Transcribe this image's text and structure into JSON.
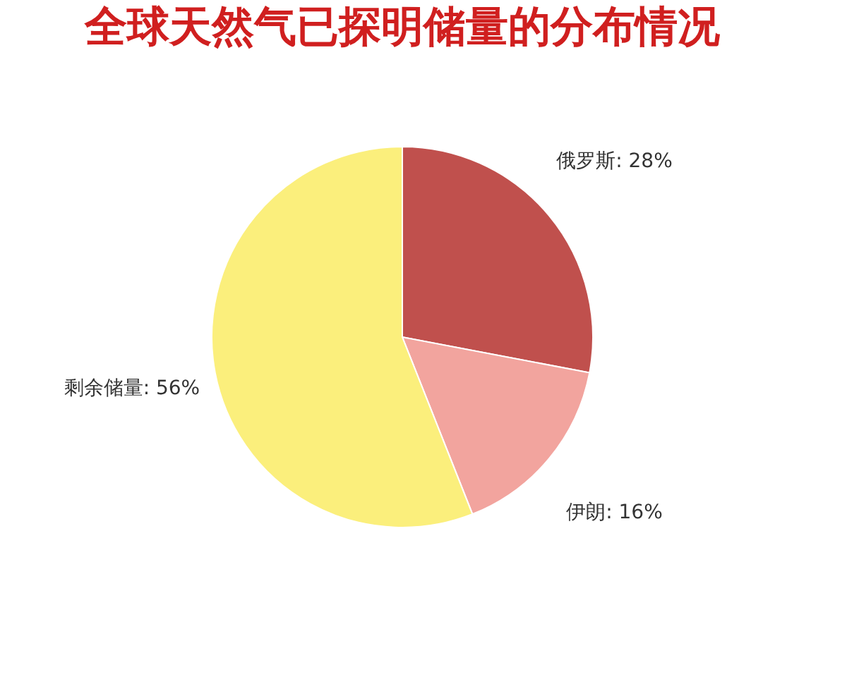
{
  "chart_data": {
    "type": "pie",
    "title": "全球天然气已探明储量的分布情况",
    "categories": [
      "俄罗斯",
      "伊朗",
      "剩余储量"
    ],
    "values": [
      28,
      16,
      56
    ],
    "value_labels": [
      "28%",
      "16%",
      "56%"
    ],
    "colors": [
      "#c0504d",
      "#f2a49e",
      "#fbef7c"
    ],
    "legend": false
  }
}
